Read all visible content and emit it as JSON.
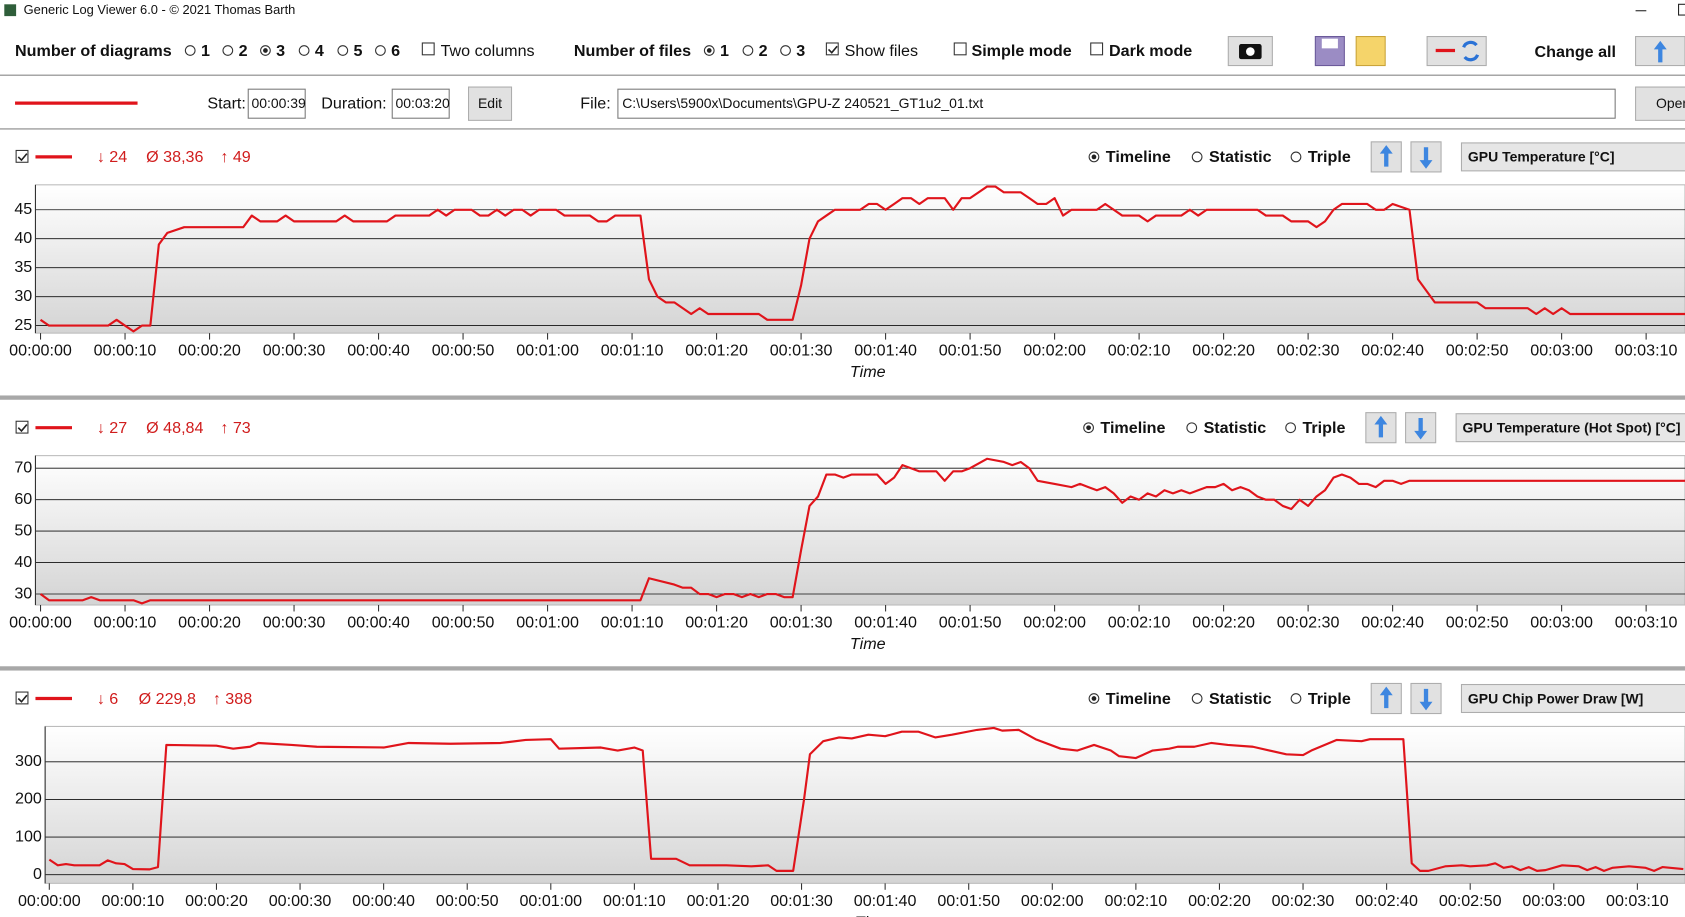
{
  "window": {
    "title": "Generic Log Viewer 6.0 - © 2021 Thomas Barth"
  },
  "toolbar": {
    "diagrams_label": "Number of diagrams",
    "diagram_options": [
      "1",
      "2",
      "3",
      "4",
      "5",
      "6"
    ],
    "diagrams_selected": 2,
    "two_columns": {
      "label": "Two columns",
      "checked": false
    },
    "files_label": "Number of files",
    "file_options": [
      "1",
      "2",
      "3"
    ],
    "files_selected": 0,
    "show_files": {
      "label": "Show files",
      "checked": true
    },
    "simple_mode": {
      "label": "Simple mode",
      "checked": false
    },
    "dark_mode": {
      "label": "Dark mode",
      "checked": false
    },
    "change_all": "Change all"
  },
  "file_bar": {
    "start_label": "Start:",
    "start": "00:00:39",
    "duration_label": "Duration:",
    "duration": "00:03:20",
    "edit": "Edit",
    "file_label": "File:",
    "file": "C:\\Users\\5900x\\Documents\\GPU-Z 240521_GT1u2_01.txt",
    "open": "Open"
  },
  "chart_data": [
    {
      "type": "line",
      "visible": true,
      "min": "↓ 24",
      "avg": "Ø 38,36",
      "max": "↑ 49",
      "modes": [
        "Timeline",
        "Statistic",
        "Triple"
      ],
      "selected_mode": 0,
      "x_label": "Time",
      "grid": true,
      "x": [
        0,
        1,
        8,
        9,
        11,
        12,
        13,
        14,
        15,
        17,
        24,
        25,
        26,
        28,
        29,
        30,
        35,
        36,
        37,
        41,
        42,
        46,
        47,
        48,
        49,
        51,
        52,
        53,
        54,
        55,
        56,
        57,
        58,
        59,
        61,
        62,
        65,
        66,
        67,
        68,
        71,
        72,
        73,
        74,
        75,
        77,
        78,
        79,
        85,
        86,
        89,
        90,
        91,
        92,
        93,
        94,
        97,
        98,
        99,
        100,
        101,
        102,
        103,
        104,
        105,
        107,
        108,
        109,
        110,
        111,
        112,
        113,
        114,
        116,
        117,
        118,
        119,
        120,
        121,
        122,
        125,
        126,
        127,
        128,
        130,
        131,
        132,
        135,
        136,
        137,
        138,
        144,
        145,
        147,
        148,
        150,
        151,
        152,
        153,
        154,
        157,
        158,
        159,
        160,
        162,
        163,
        165,
        170,
        171,
        176,
        177,
        178,
        179,
        180,
        181,
        194.6
      ],
      "series": [
        {
          "name": "GPU Temperature [°C]",
          "color": "#e0141b",
          "values": [
            26,
            25,
            25,
            26,
            24,
            25,
            25,
            39,
            41,
            42,
            42,
            44,
            43,
            43,
            44,
            43,
            43,
            44,
            43,
            43,
            44,
            44,
            45,
            44,
            45,
            45,
            44,
            44,
            45,
            44,
            45,
            45,
            44,
            45,
            45,
            44,
            44,
            43,
            43,
            44,
            44,
            33,
            30,
            29,
            29,
            27,
            28,
            27,
            27,
            26,
            26,
            32,
            40,
            43,
            44,
            45,
            45,
            46,
            46,
            45,
            46,
            47,
            47,
            46,
            47,
            47,
            45,
            47,
            47,
            48,
            49,
            49,
            48,
            48,
            47,
            46,
            46,
            47,
            44,
            45,
            45,
            46,
            45,
            44,
            44,
            43,
            44,
            44,
            45,
            44,
            45,
            45,
            44,
            44,
            43,
            43,
            42,
            43,
            45,
            46,
            46,
            45,
            45,
            46,
            45,
            33,
            29,
            29,
            28,
            28,
            27,
            28,
            27,
            28,
            27,
            27
          ]
        }
      ],
      "xlim": [
        -0.6,
        194.6
      ],
      "ylim": [
        23.7,
        49.3
      ],
      "yticks": [
        25,
        30,
        35,
        40,
        45
      ],
      "xticks": [
        {
          "value": 0,
          "label": "00:00:00"
        },
        {
          "value": 10,
          "label": "00:00:10"
        },
        {
          "value": 20,
          "label": "00:00:20"
        },
        {
          "value": 30,
          "label": "00:00:30"
        },
        {
          "value": 40,
          "label": "00:00:40"
        },
        {
          "value": 50,
          "label": "00:00:50"
        },
        {
          "value": 60,
          "label": "00:01:00"
        },
        {
          "value": 70,
          "label": "00:01:10"
        },
        {
          "value": 80,
          "label": "00:01:20"
        },
        {
          "value": 90,
          "label": "00:01:30"
        },
        {
          "value": 100,
          "label": "00:01:40"
        },
        {
          "value": 110,
          "label": "00:01:50"
        },
        {
          "value": 120,
          "label": "00:02:00"
        },
        {
          "value": 130,
          "label": "00:02:10"
        },
        {
          "value": 140,
          "label": "00:02:20"
        },
        {
          "value": 150,
          "label": "00:02:30"
        },
        {
          "value": 160,
          "label": "00:02:40"
        },
        {
          "value": 170,
          "label": "00:02:50"
        },
        {
          "value": 180,
          "label": "00:03:00"
        },
        {
          "value": 190,
          "label": "00:03:10"
        }
      ]
    },
    {
      "type": "line",
      "visible": true,
      "min": "↓ 27",
      "avg": "Ø 48,84",
      "max": "↑ 73",
      "modes": [
        "Timeline",
        "Statistic",
        "Triple"
      ],
      "selected_mode": 0,
      "x_label": "Time",
      "grid": true,
      "x": [
        0,
        1,
        5,
        6,
        7,
        11,
        12,
        13,
        71,
        72,
        75,
        76,
        77,
        78,
        79,
        80,
        81,
        82,
        83,
        84,
        85,
        86,
        87,
        88,
        89,
        90,
        91,
        92,
        93,
        94,
        95,
        96,
        99,
        100,
        101,
        102,
        103,
        104,
        106,
        107,
        108,
        109,
        110,
        112,
        114,
        115,
        116,
        117,
        118,
        120,
        122,
        123,
        124,
        125,
        126,
        127,
        128,
        129,
        130,
        131,
        132,
        133,
        134,
        135,
        136,
        137,
        138,
        139,
        140,
        141,
        142,
        143,
        144,
        145,
        146,
        147,
        148,
        149,
        150,
        151,
        152,
        153,
        154,
        155,
        156,
        157,
        158,
        159,
        160,
        161,
        162,
        194.6
      ],
      "series": [
        {
          "name": "GPU Temperature (Hot Spot) [°C]",
          "color": "#e0141b",
          "values": [
            30,
            28,
            28,
            29,
            28,
            28,
            27,
            28,
            28,
            35,
            33,
            32,
            32,
            30,
            30,
            29,
            30,
            30,
            29,
            30,
            29,
            30,
            30,
            29,
            29,
            44,
            58,
            61,
            68,
            68,
            67,
            68,
            68,
            65,
            67,
            71,
            70,
            69,
            69,
            66,
            69,
            69,
            70,
            73,
            72,
            71,
            72,
            70,
            66,
            65,
            64,
            65,
            64,
            63,
            64,
            62,
            59,
            61,
            60,
            62,
            61,
            63,
            62,
            63,
            62,
            63,
            64,
            64,
            65,
            63,
            64,
            63,
            61,
            60,
            60,
            58,
            57,
            60,
            58,
            61,
            63,
            67,
            68,
            67,
            65,
            65,
            64,
            66,
            66,
            65,
            66,
            66
          ]
        }
      ],
      "xlim": [
        -0.6,
        194.6
      ],
      "ylim": [
        26.5,
        74
      ],
      "yticks": [
        30,
        40,
        50,
        60,
        70
      ],
      "xticks": [
        {
          "value": 0,
          "label": "00:00:00"
        },
        {
          "value": 10,
          "label": "00:00:10"
        },
        {
          "value": 20,
          "label": "00:00:20"
        },
        {
          "value": 30,
          "label": "00:00:30"
        },
        {
          "value": 40,
          "label": "00:00:40"
        },
        {
          "value": 50,
          "label": "00:00:50"
        },
        {
          "value": 60,
          "label": "00:01:00"
        },
        {
          "value": 70,
          "label": "00:01:10"
        },
        {
          "value": 80,
          "label": "00:01:20"
        },
        {
          "value": 90,
          "label": "00:01:30"
        },
        {
          "value": 100,
          "label": "00:01:40"
        },
        {
          "value": 110,
          "label": "00:01:50"
        },
        {
          "value": 120,
          "label": "00:02:00"
        },
        {
          "value": 130,
          "label": "00:02:10"
        },
        {
          "value": 140,
          "label": "00:02:20"
        },
        {
          "value": 150,
          "label": "00:02:30"
        },
        {
          "value": 160,
          "label": "00:02:40"
        },
        {
          "value": 170,
          "label": "00:02:50"
        },
        {
          "value": 180,
          "label": "00:03:00"
        },
        {
          "value": 190,
          "label": "00:03:10"
        }
      ]
    },
    {
      "type": "line",
      "visible": true,
      "min": "↓ 6",
      "avg": "Ø 229,8",
      "max": "↑ 388",
      "modes": [
        "Timeline",
        "Statistic",
        "Triple"
      ],
      "selected_mode": 0,
      "x_label": "Time",
      "grid": true,
      "x": [
        0,
        1,
        2,
        3,
        6,
        7,
        8,
        9,
        10,
        12,
        13,
        14,
        20,
        22,
        24,
        25,
        29,
        32,
        40,
        43,
        48,
        54,
        57,
        60,
        61,
        66,
        68,
        70,
        71,
        72,
        75,
        76.6,
        81,
        84,
        86,
        87,
        89,
        90.3,
        91,
        92.6,
        94.5,
        96,
        98,
        100,
        102,
        104,
        106,
        108,
        111,
        113,
        114,
        116,
        118,
        121,
        123,
        125,
        127,
        128,
        130,
        132,
        134,
        135,
        137,
        139,
        141,
        144,
        146,
        148,
        150,
        151,
        154,
        157,
        158,
        162,
        163,
        164,
        165,
        167,
        169,
        170,
        172,
        173,
        174,
        175,
        176,
        177,
        178,
        179,
        181,
        183,
        184,
        185,
        186,
        187,
        189,
        190,
        191,
        192,
        193,
        195.5
      ],
      "series": [
        {
          "name": "GPU Chip Power Draw [W]",
          "color": "#e0141b",
          "values": [
            40,
            25,
            28,
            25,
            25,
            38,
            30,
            28,
            15,
            14,
            20,
            345,
            343,
            335,
            340,
            350,
            345,
            340,
            338,
            350,
            348,
            350,
            358,
            360,
            335,
            338,
            330,
            338,
            330,
            42,
            42,
            25,
            25,
            22,
            25,
            10,
            10,
            200,
            320,
            355,
            365,
            362,
            372,
            368,
            380,
            380,
            365,
            372,
            385,
            390,
            383,
            385,
            360,
            335,
            330,
            345,
            330,
            315,
            310,
            330,
            335,
            340,
            340,
            350,
            345,
            340,
            330,
            320,
            318,
            330,
            358,
            355,
            360,
            360,
            30,
            10,
            10,
            22,
            25,
            22,
            25,
            30,
            18,
            22,
            12,
            20,
            10,
            12,
            25,
            22,
            12,
            20,
            10,
            18,
            22,
            20,
            18,
            10,
            20,
            15
          ]
        }
      ],
      "xlim": [
        -0.5,
        195.7
      ],
      "ylim": [
        -23,
        394
      ],
      "yticks": [
        0,
        100,
        200,
        300
      ],
      "xticks": [
        {
          "value": 0,
          "label": "00:00:00"
        },
        {
          "value": 10,
          "label": "00:00:10"
        },
        {
          "value": 20,
          "label": "00:00:20"
        },
        {
          "value": 30,
          "label": "00:00:30"
        },
        {
          "value": 40,
          "label": "00:00:40"
        },
        {
          "value": 50,
          "label": "00:00:50"
        },
        {
          "value": 60,
          "label": "00:01:00"
        },
        {
          "value": 70,
          "label": "00:01:10"
        },
        {
          "value": 80,
          "label": "00:01:20"
        },
        {
          "value": 90,
          "label": "00:01:30"
        },
        {
          "value": 100,
          "label": "00:01:40"
        },
        {
          "value": 110,
          "label": "00:01:50"
        },
        {
          "value": 120,
          "label": "00:02:00"
        },
        {
          "value": 130,
          "label": "00:02:10"
        },
        {
          "value": 140,
          "label": "00:02:20"
        },
        {
          "value": 150,
          "label": "00:02:30"
        },
        {
          "value": 160,
          "label": "00:02:40"
        },
        {
          "value": 170,
          "label": "00:02:50"
        },
        {
          "value": 180,
          "label": "00:03:00"
        },
        {
          "value": 190,
          "label": "00:03:10"
        }
      ]
    }
  ]
}
